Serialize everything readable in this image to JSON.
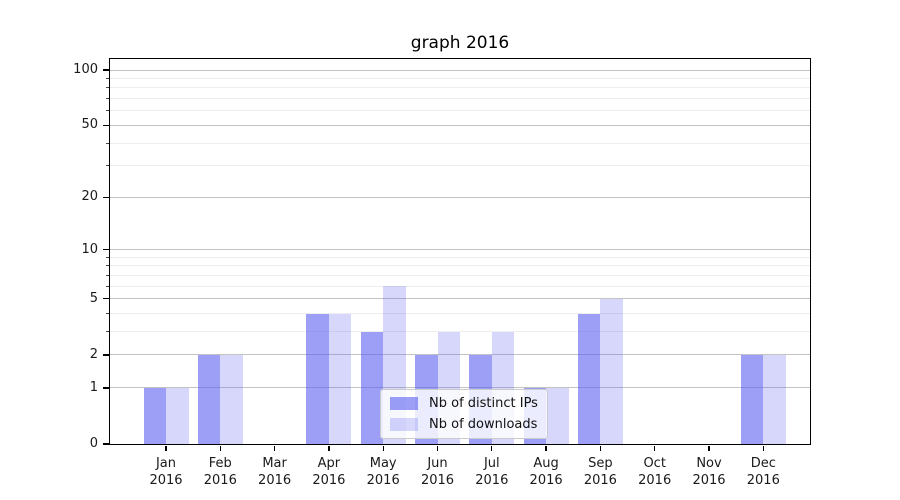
{
  "chart_data": {
    "type": "bar",
    "title": "graph 2016",
    "categories": [
      "Jan",
      "Feb",
      "Mar",
      "Apr",
      "May",
      "Jun",
      "Jul",
      "Aug",
      "Sep",
      "Oct",
      "Nov",
      "Dec"
    ],
    "year": "2016",
    "series": [
      {
        "name": "Nb of distinct IPs",
        "color": "rgba(90,95,238,0.6)",
        "values": [
          1,
          2,
          0,
          4,
          3,
          2,
          2,
          1,
          4,
          0,
          0,
          2
        ]
      },
      {
        "name": "Nb of downloads",
        "color": "rgba(90,95,238,0.25)",
        "values": [
          1,
          2,
          0,
          4,
          6,
          3,
          3,
          1,
          5,
          0,
          0,
          2
        ]
      }
    ],
    "y_axis": {
      "scale": "log1p",
      "ticks": [
        0,
        1,
        2,
        5,
        10,
        20,
        50,
        100
      ],
      "minor_gridlines": [
        3,
        4,
        6,
        7,
        8,
        9,
        30,
        40,
        60,
        70,
        80,
        90
      ],
      "ylim": [
        0,
        115
      ]
    },
    "grid": "horizontal",
    "legend_position": "lower center"
  }
}
